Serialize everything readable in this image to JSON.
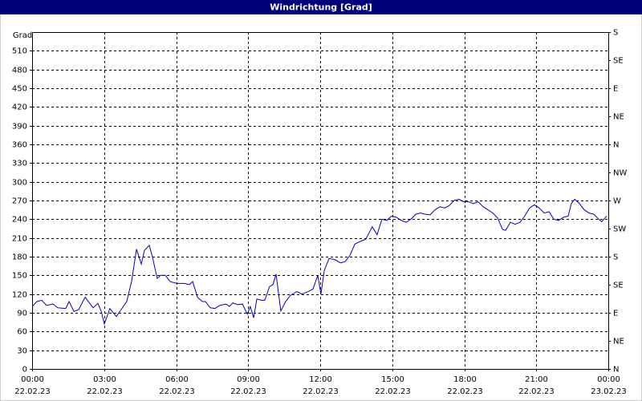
{
  "chart_data": {
    "type": "line",
    "title": "Windrichtung [Grad]",
    "ylabel": "Grad",
    "xlim": [
      0,
      24
    ],
    "ylim": [
      0,
      540
    ],
    "y2lim": [
      0,
      540
    ],
    "xticks": [
      {
        "value": 0,
        "label": "00:00",
        "date": "22.02.23"
      },
      {
        "value": 3,
        "label": "03:00",
        "date": "22.02.23"
      },
      {
        "value": 6,
        "label": "06:00",
        "date": "22.02.23"
      },
      {
        "value": 9,
        "label": "09:00",
        "date": "22.02.23"
      },
      {
        "value": 12,
        "label": "12:00",
        "date": "22.02.23"
      },
      {
        "value": 15,
        "label": "15:00",
        "date": "22.02.23"
      },
      {
        "value": 18,
        "label": "18:00",
        "date": "22.02.23"
      },
      {
        "value": 21,
        "label": "21:00",
        "date": "22.02.23"
      },
      {
        "value": 24,
        "label": "00:00",
        "date": "23.02.23"
      }
    ],
    "yticks": [
      0,
      30,
      60,
      90,
      120,
      150,
      180,
      210,
      240,
      270,
      300,
      330,
      360,
      390,
      420,
      450,
      480,
      510
    ],
    "y2ticks": [
      {
        "value": 0,
        "label": "N"
      },
      {
        "value": 45,
        "label": "NE"
      },
      {
        "value": 90,
        "label": "E"
      },
      {
        "value": 135,
        "label": "SE"
      },
      {
        "value": 180,
        "label": "S"
      },
      {
        "value": 225,
        "label": "SW"
      },
      {
        "value": 270,
        "label": "W"
      },
      {
        "value": 315,
        "label": "NW"
      },
      {
        "value": 360,
        "label": "N"
      },
      {
        "value": 405,
        "label": "NE"
      },
      {
        "value": 450,
        "label": "E"
      },
      {
        "value": 495,
        "label": "SE"
      },
      {
        "value": 540,
        "label": "S"
      }
    ],
    "grid": true,
    "series": [
      {
        "color": "#0000c0",
        "x": [
          0,
          0.2,
          0.4,
          0.6,
          0.87,
          1.07,
          1.4,
          1.54,
          1.74,
          1.94,
          2.21,
          2.54,
          2.74,
          2.88,
          3.01,
          3.24,
          3.51,
          3.74,
          3.94,
          4.14,
          4.35,
          4.55,
          4.68,
          4.88,
          5.01,
          5.21,
          5.35,
          5.55,
          5.75,
          6.02,
          6.35,
          6.55,
          6.69,
          6.89,
          7.09,
          7.22,
          7.42,
          7.62,
          7.82,
          8.09,
          8.22,
          8.36,
          8.56,
          8.76,
          8.96,
          9.09,
          9.23,
          9.36,
          9.56,
          9.69,
          9.89,
          10.03,
          10.16,
          10.36,
          10.56,
          10.76,
          11.03,
          11.23,
          11.5,
          11.7,
          11.9,
          12.03,
          12.17,
          12.37,
          12.63,
          12.84,
          13.04,
          13.24,
          13.44,
          13.7,
          13.9,
          14.17,
          14.37,
          14.57,
          14.77,
          14.97,
          15.18,
          15.38,
          15.58,
          15.78,
          15.98,
          16.18,
          16.38,
          16.58,
          16.78,
          16.98,
          17.18,
          17.38,
          17.58,
          17.78,
          17.98,
          18.18,
          18.38,
          18.58,
          18.79,
          18.99,
          19.19,
          19.39,
          19.59,
          19.72,
          19.92,
          20.12,
          20.32,
          20.52,
          20.72,
          20.92,
          21.12,
          21.33,
          21.53,
          21.73,
          21.93,
          22.13,
          22.33,
          22.46,
          22.6,
          22.8,
          23.0,
          23.2,
          23.4,
          23.6,
          23.73,
          23.93
        ],
        "values": [
          100,
          108,
          110,
          102,
          104,
          98,
          97,
          108,
          92,
          95,
          115,
          98,
          105,
          92,
          72,
          97,
          84,
          97,
          108,
          140,
          192,
          168,
          190,
          198,
          180,
          145,
          150,
          150,
          140,
          137,
          137,
          135,
          140,
          115,
          108,
          108,
          98,
          97,
          102,
          104,
          100,
          106,
          103,
          104,
          88,
          100,
          82,
          112,
          110,
          110,
          132,
          135,
          152,
          93,
          108,
          118,
          124,
          120,
          124,
          128,
          150,
          120,
          158,
          177,
          175,
          170,
          172,
          182,
          200,
          205,
          208,
          228,
          215,
          240,
          238,
          245,
          243,
          238,
          235,
          240,
          248,
          250,
          248,
          247,
          255,
          260,
          258,
          262,
          270,
          272,
          268,
          268,
          265,
          268,
          260,
          255,
          250,
          242,
          224,
          222,
          235,
          232,
          235,
          245,
          258,
          263,
          258,
          250,
          252,
          240,
          238,
          243,
          245,
          265,
          272,
          265,
          255,
          250,
          248,
          240,
          236,
          245
        ]
      }
    ]
  }
}
